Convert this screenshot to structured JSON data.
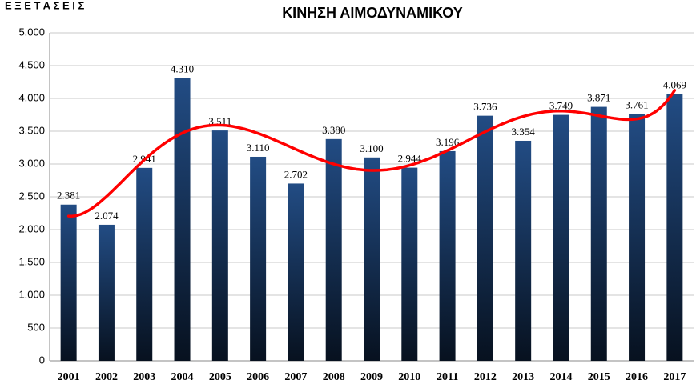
{
  "chart_data": {
    "type": "bar",
    "title": "ΚΙΝΗΣΗ ΑΙΜΟΔΥΝΑΜΙΚΟΥ",
    "subtitle": "Ε Ξ Ε Τ Α Σ Ε Ι Σ",
    "categories": [
      "2001",
      "2002",
      "2003",
      "2004",
      "2005",
      "2006",
      "2007",
      "2008",
      "2009",
      "2010",
      "2011",
      "2012",
      "2013",
      "2014",
      "2015",
      "2016",
      "2017"
    ],
    "values": [
      2381,
      2074,
      2941,
      4310,
      3511,
      3110,
      2702,
      3380,
      3100,
      2944,
      3196,
      3736,
      3354,
      3749,
      3871,
      3761,
      4069
    ],
    "value_labels": [
      "2.381",
      "2.074",
      "2.941",
      "4.310",
      "3.511",
      "3.110",
      "2.702",
      "3.380",
      "3.100",
      "2.944",
      "3.196",
      "3.736",
      "3.354",
      "3.749",
      "3.871",
      "3.761",
      "4.069"
    ],
    "color": "#1f4a80",
    "ylim": [
      0,
      5000
    ],
    "yticks": [
      0,
      {
        "value": 500,
        "label": "500"
      },
      {
        "value": 1000,
        "label": "1.000"
      },
      {
        "value": 1500,
        "label": "1.500"
      },
      {
        "value": 2000,
        "label": "2.000"
      },
      {
        "value": 2500,
        "label": "2.500"
      },
      {
        "value": 3000,
        "label": "3.000"
      },
      {
        "value": 3500,
        "label": "3.500"
      },
      {
        "value": 4000,
        "label": "4.000"
      },
      {
        "value": 4500,
        "label": "4.500"
      },
      {
        "value": 5000,
        "label": "5.000"
      }
    ],
    "grid": true,
    "trendline_color": "#ff0000"
  }
}
